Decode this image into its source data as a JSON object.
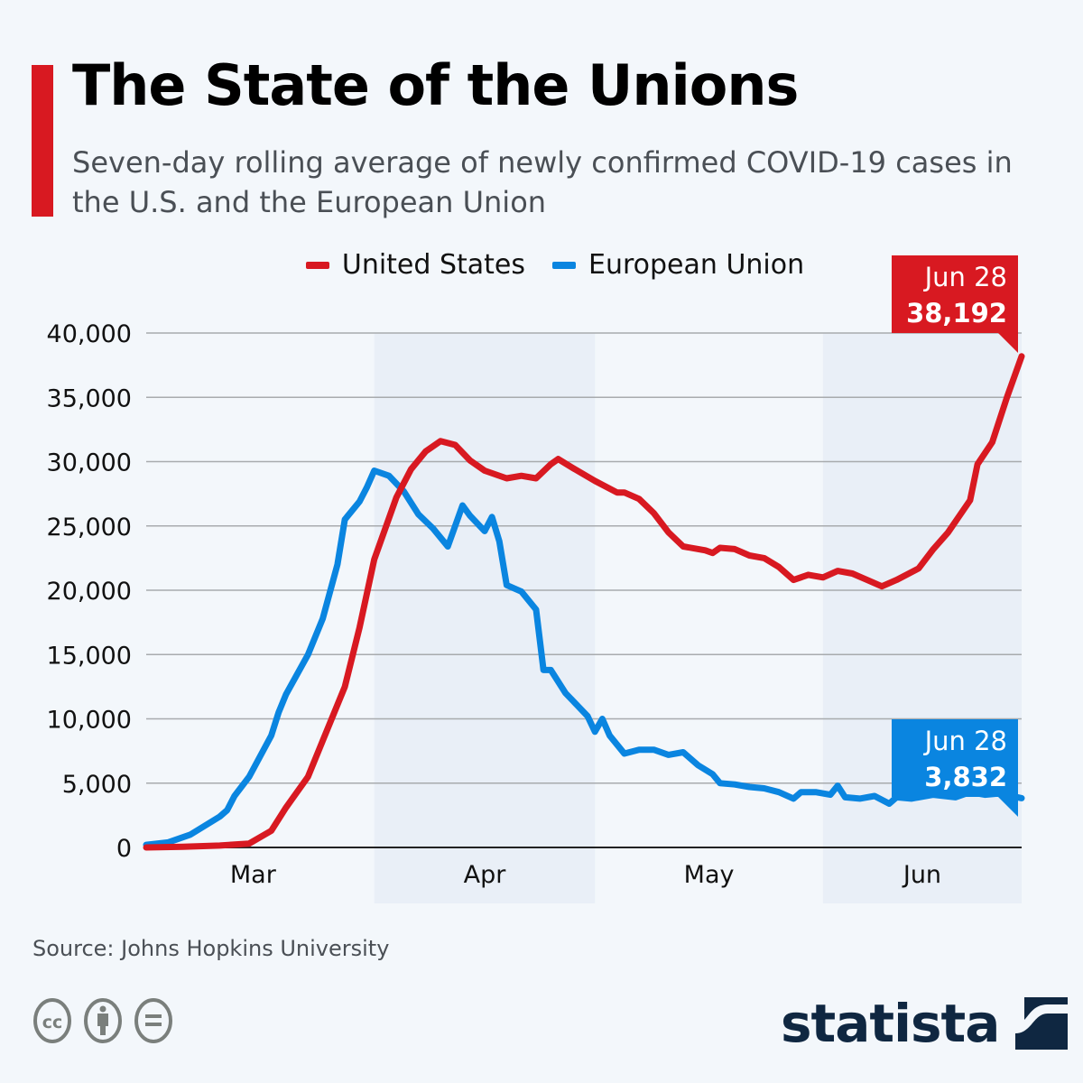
{
  "header": {
    "title": "The State of the Unions",
    "subtitle": "Seven-day rolling average of newly confirmed COVID-19 cases in the U.S. and the European Union"
  },
  "footer": {
    "source": "Source: Johns Hopkins University",
    "license_icons": [
      "cc-icon",
      "attribution-icon",
      "no-derivatives-icon"
    ],
    "logo_text": "statista"
  },
  "colors": {
    "us": "#d81921",
    "eu": "#0a85e0",
    "background": "#f3f7fb",
    "band": "#e9eff7",
    "logo": "#0f2741"
  },
  "chart_data": {
    "type": "line",
    "title": "The State of the Unions",
    "subtitle": "Seven-day rolling average of newly confirmed COVID-19 cases in the U.S. and the European Union",
    "xlabel": "",
    "ylabel": "",
    "x_unit": "day index from Mar 1 (0) to Jun 28 (119)",
    "xlim": [
      0,
      119
    ],
    "ylim": [
      0,
      40000
    ],
    "yticks": [
      0,
      5000,
      10000,
      15000,
      20000,
      25000,
      30000,
      35000,
      40000
    ],
    "ytick_labels": [
      "0",
      "5,000",
      "10,000",
      "15,000",
      "20,000",
      "25,000",
      "30,000",
      "35,000",
      "40,000"
    ],
    "month_ticks": [
      {
        "label": "Mar",
        "start": 0,
        "end": 31,
        "shaded": false
      },
      {
        "label": "Apr",
        "start": 31,
        "end": 61,
        "shaded": true
      },
      {
        "label": "May",
        "start": 61,
        "end": 92,
        "shaded": false
      },
      {
        "label": "Jun",
        "start": 92,
        "end": 119,
        "shaded": true
      }
    ],
    "grid": true,
    "legend": "top-center",
    "legend_entries": [
      "United States",
      "European Union"
    ],
    "series": [
      {
        "name": "United States",
        "color": "#d81921",
        "x": [
          0,
          5,
          10,
          14,
          17,
          19,
          22,
          24,
          27,
          29,
          31,
          34,
          36,
          38,
          40,
          42,
          44,
          46,
          49,
          51,
          53,
          55,
          56,
          58,
          61,
          64,
          65,
          67,
          69,
          71,
          73,
          76,
          77,
          78,
          80,
          82,
          84,
          86,
          88,
          90,
          92,
          94,
          96,
          98,
          100,
          102,
          105,
          107,
          109,
          112,
          113,
          115,
          117,
          119
        ],
        "values": [
          0,
          50,
          150,
          300,
          1300,
          3100,
          5500,
          8300,
          12500,
          17100,
          22400,
          27200,
          29400,
          30800,
          31600,
          31300,
          30100,
          29300,
          28700,
          28900,
          28700,
          29800,
          30200,
          29500,
          28500,
          27600,
          27600,
          27100,
          26000,
          24500,
          23400,
          23100,
          22900,
          23300,
          23200,
          22700,
          22500,
          21800,
          20800,
          21200,
          21000,
          21500,
          21300,
          20800,
          20300,
          20800,
          21700,
          23200,
          24500,
          27000,
          29800,
          31500,
          35000,
          38192
        ]
      },
      {
        "name": "European Union",
        "color": "#0a85e0",
        "x": [
          0,
          3,
          6,
          10,
          11,
          12,
          14,
          17,
          18,
          19,
          22,
          24,
          26,
          27,
          29,
          30,
          31,
          33,
          35,
          37,
          39,
          41,
          43,
          44,
          46,
          47,
          48,
          49,
          51,
          53,
          54,
          55,
          57,
          58,
          60,
          61,
          62,
          63,
          65,
          67,
          69,
          71,
          73,
          75,
          77,
          78,
          80,
          82,
          84,
          86,
          88,
          89,
          91,
          93,
          94,
          95,
          97,
          99,
          101,
          102,
          104,
          107,
          110,
          112,
          114,
          116,
          119
        ],
        "values": [
          200,
          400,
          1000,
          2400,
          2900,
          4000,
          5500,
          8700,
          10500,
          11900,
          15000,
          17800,
          22000,
          25500,
          26900,
          28000,
          29300,
          28900,
          27700,
          25900,
          24800,
          23400,
          26600,
          25800,
          24600,
          25700,
          23800,
          20400,
          19900,
          18500,
          13800,
          13800,
          12000,
          11400,
          10200,
          9000,
          10000,
          8700,
          7300,
          7600,
          7600,
          7200,
          7400,
          6400,
          5700,
          5000,
          4900,
          4700,
          4600,
          4300,
          3800,
          4300,
          4300,
          4100,
          4800,
          3900,
          3800,
          4000,
          3400,
          3900,
          3800,
          4100,
          3900,
          4300,
          4100,
          4200,
          3832
        ]
      }
    ],
    "annotations": [
      {
        "series": "United States",
        "date": "Jun 28",
        "value": 38192,
        "value_label": "38,192"
      },
      {
        "series": "European Union",
        "date": "Jun 28",
        "value": 3832,
        "value_label": "3,832"
      }
    ]
  }
}
